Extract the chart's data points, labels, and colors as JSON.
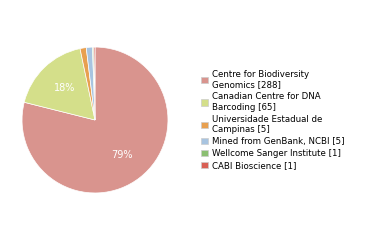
{
  "labels": [
    "Centre for Biodiversity\nGenomics [288]",
    "Canadian Centre for DNA\nBarcoding [65]",
    "Universidade Estadual de\nCampinas [5]",
    "Mined from GenBank, NCBI [5]",
    "Wellcome Sanger Institute [1]",
    "CABI Bioscience [1]"
  ],
  "values": [
    288,
    65,
    5,
    5,
    1,
    1
  ],
  "colors": [
    "#d9948e",
    "#d4df8a",
    "#e8a050",
    "#a8c4e0",
    "#8bbf72",
    "#d96055"
  ],
  "background_color": "#ffffff",
  "font_size": 7.0,
  "pct_threshold": 5.0
}
